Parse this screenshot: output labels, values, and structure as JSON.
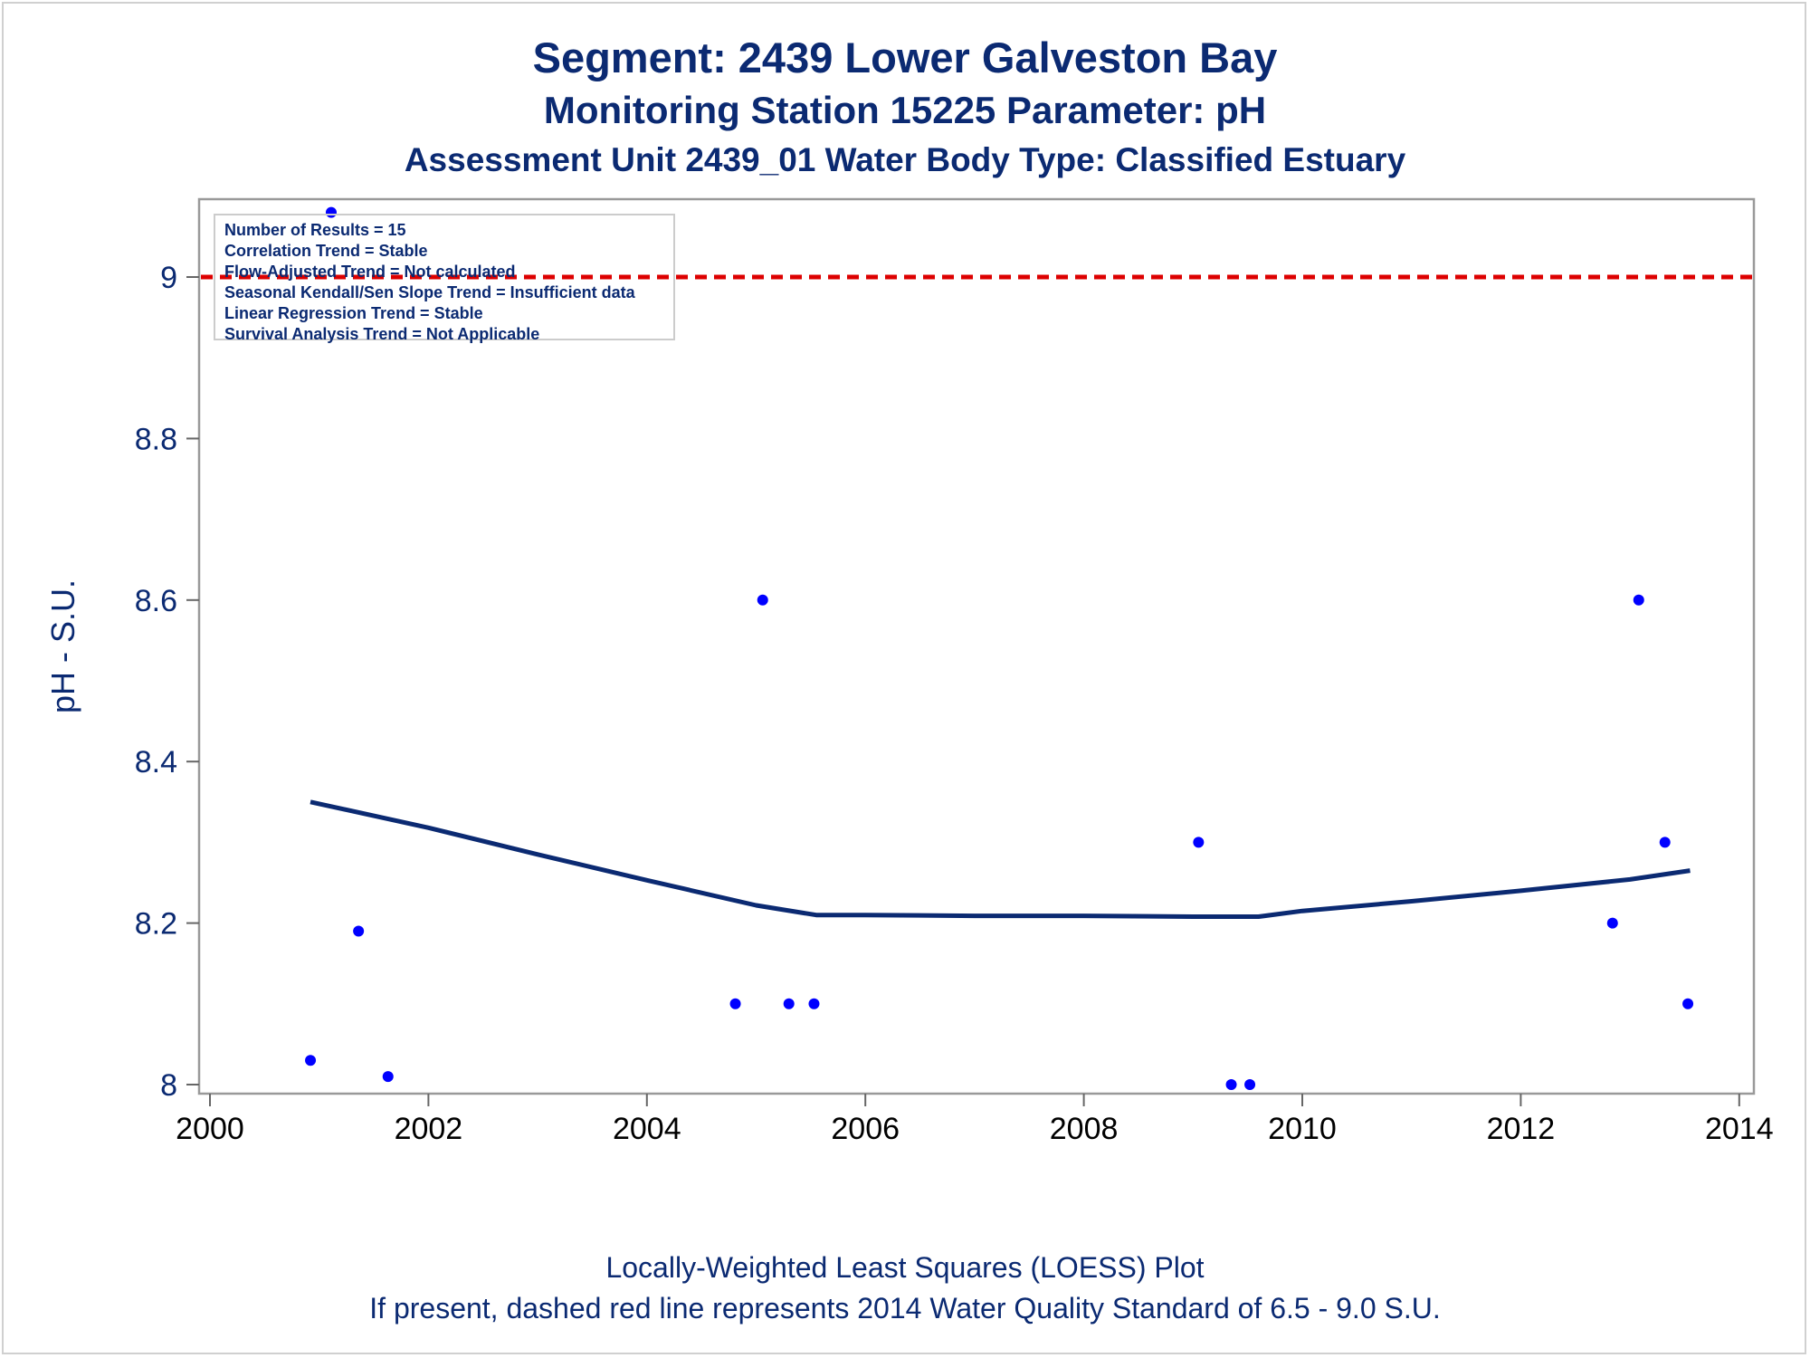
{
  "titles": {
    "line1": "Segment: 2439  Lower Galveston Bay",
    "line2": "Monitoring Station 15225 Parameter: pH",
    "line3": "Assessment Unit 2439_01   Water Body Type: Classified Estuary"
  },
  "footnotes": {
    "line1": "Locally-Weighted Least Squares (LOESS) Plot",
    "line2": "If present, dashed red line represents 2014 Water Quality Standard of 6.5 - 9.0 S.U."
  },
  "stats_box": [
    "Number of Results = 15",
    "Correlation Trend = Stable",
    "Flow-Adjusted Trend = Not calculated",
    "Seasonal Kendall/Sen Slope Trend = Insufficient data",
    "Linear Regression Trend = Stable",
    "Survival Analysis Trend = Not Applicable"
  ],
  "colors": {
    "text": "#0b2a72",
    "points": "#0000ff",
    "loess": "#0b2a72",
    "standard_line": "#dd0000",
    "axis": "#999999"
  },
  "chart_data": {
    "type": "scatter",
    "ylabel": "pH - S.U.",
    "xlim": [
      2000,
      2014
    ],
    "ylim": [
      7.99,
      9.1
    ],
    "x_ticks": [
      2000,
      2002,
      2004,
      2006,
      2008,
      2010,
      2012,
      2014
    ],
    "y_ticks": [
      8,
      8.2,
      8.4,
      8.6,
      8.8,
      9
    ],
    "y_tick_labels": [
      "8",
      "8.2",
      "8.4",
      "8.6",
      "8.8",
      "9"
    ],
    "reference_line": {
      "y": 9.0,
      "style": "dashed"
    },
    "points": [
      {
        "x": 2000.92,
        "y": 8.03
      },
      {
        "x": 2001.11,
        "y": 9.08
      },
      {
        "x": 2001.36,
        "y": 8.19
      },
      {
        "x": 2001.63,
        "y": 8.01
      },
      {
        "x": 2004.81,
        "y": 8.1
      },
      {
        "x": 2005.06,
        "y": 8.6
      },
      {
        "x": 2005.3,
        "y": 8.1
      },
      {
        "x": 2005.53,
        "y": 8.1
      },
      {
        "x": 2009.05,
        "y": 8.3
      },
      {
        "x": 2009.35,
        "y": 8.0
      },
      {
        "x": 2009.52,
        "y": 8.0
      },
      {
        "x": 2012.84,
        "y": 8.2
      },
      {
        "x": 2013.08,
        "y": 8.6
      },
      {
        "x": 2013.32,
        "y": 8.3
      },
      {
        "x": 2013.53,
        "y": 8.1
      }
    ],
    "loess": [
      {
        "x": 2000.92,
        "y": 8.35
      },
      {
        "x": 2002.0,
        "y": 8.318
      },
      {
        "x": 2003.0,
        "y": 8.285
      },
      {
        "x": 2004.0,
        "y": 8.253
      },
      {
        "x": 2005.0,
        "y": 8.222
      },
      {
        "x": 2005.55,
        "y": 8.21
      },
      {
        "x": 2006.0,
        "y": 8.21
      },
      {
        "x": 2007.0,
        "y": 8.209
      },
      {
        "x": 2008.0,
        "y": 8.209
      },
      {
        "x": 2009.0,
        "y": 8.208
      },
      {
        "x": 2009.6,
        "y": 8.208
      },
      {
        "x": 2010.0,
        "y": 8.215
      },
      {
        "x": 2011.0,
        "y": 8.227
      },
      {
        "x": 2012.0,
        "y": 8.24
      },
      {
        "x": 2013.0,
        "y": 8.254
      },
      {
        "x": 2013.55,
        "y": 8.265
      }
    ]
  }
}
